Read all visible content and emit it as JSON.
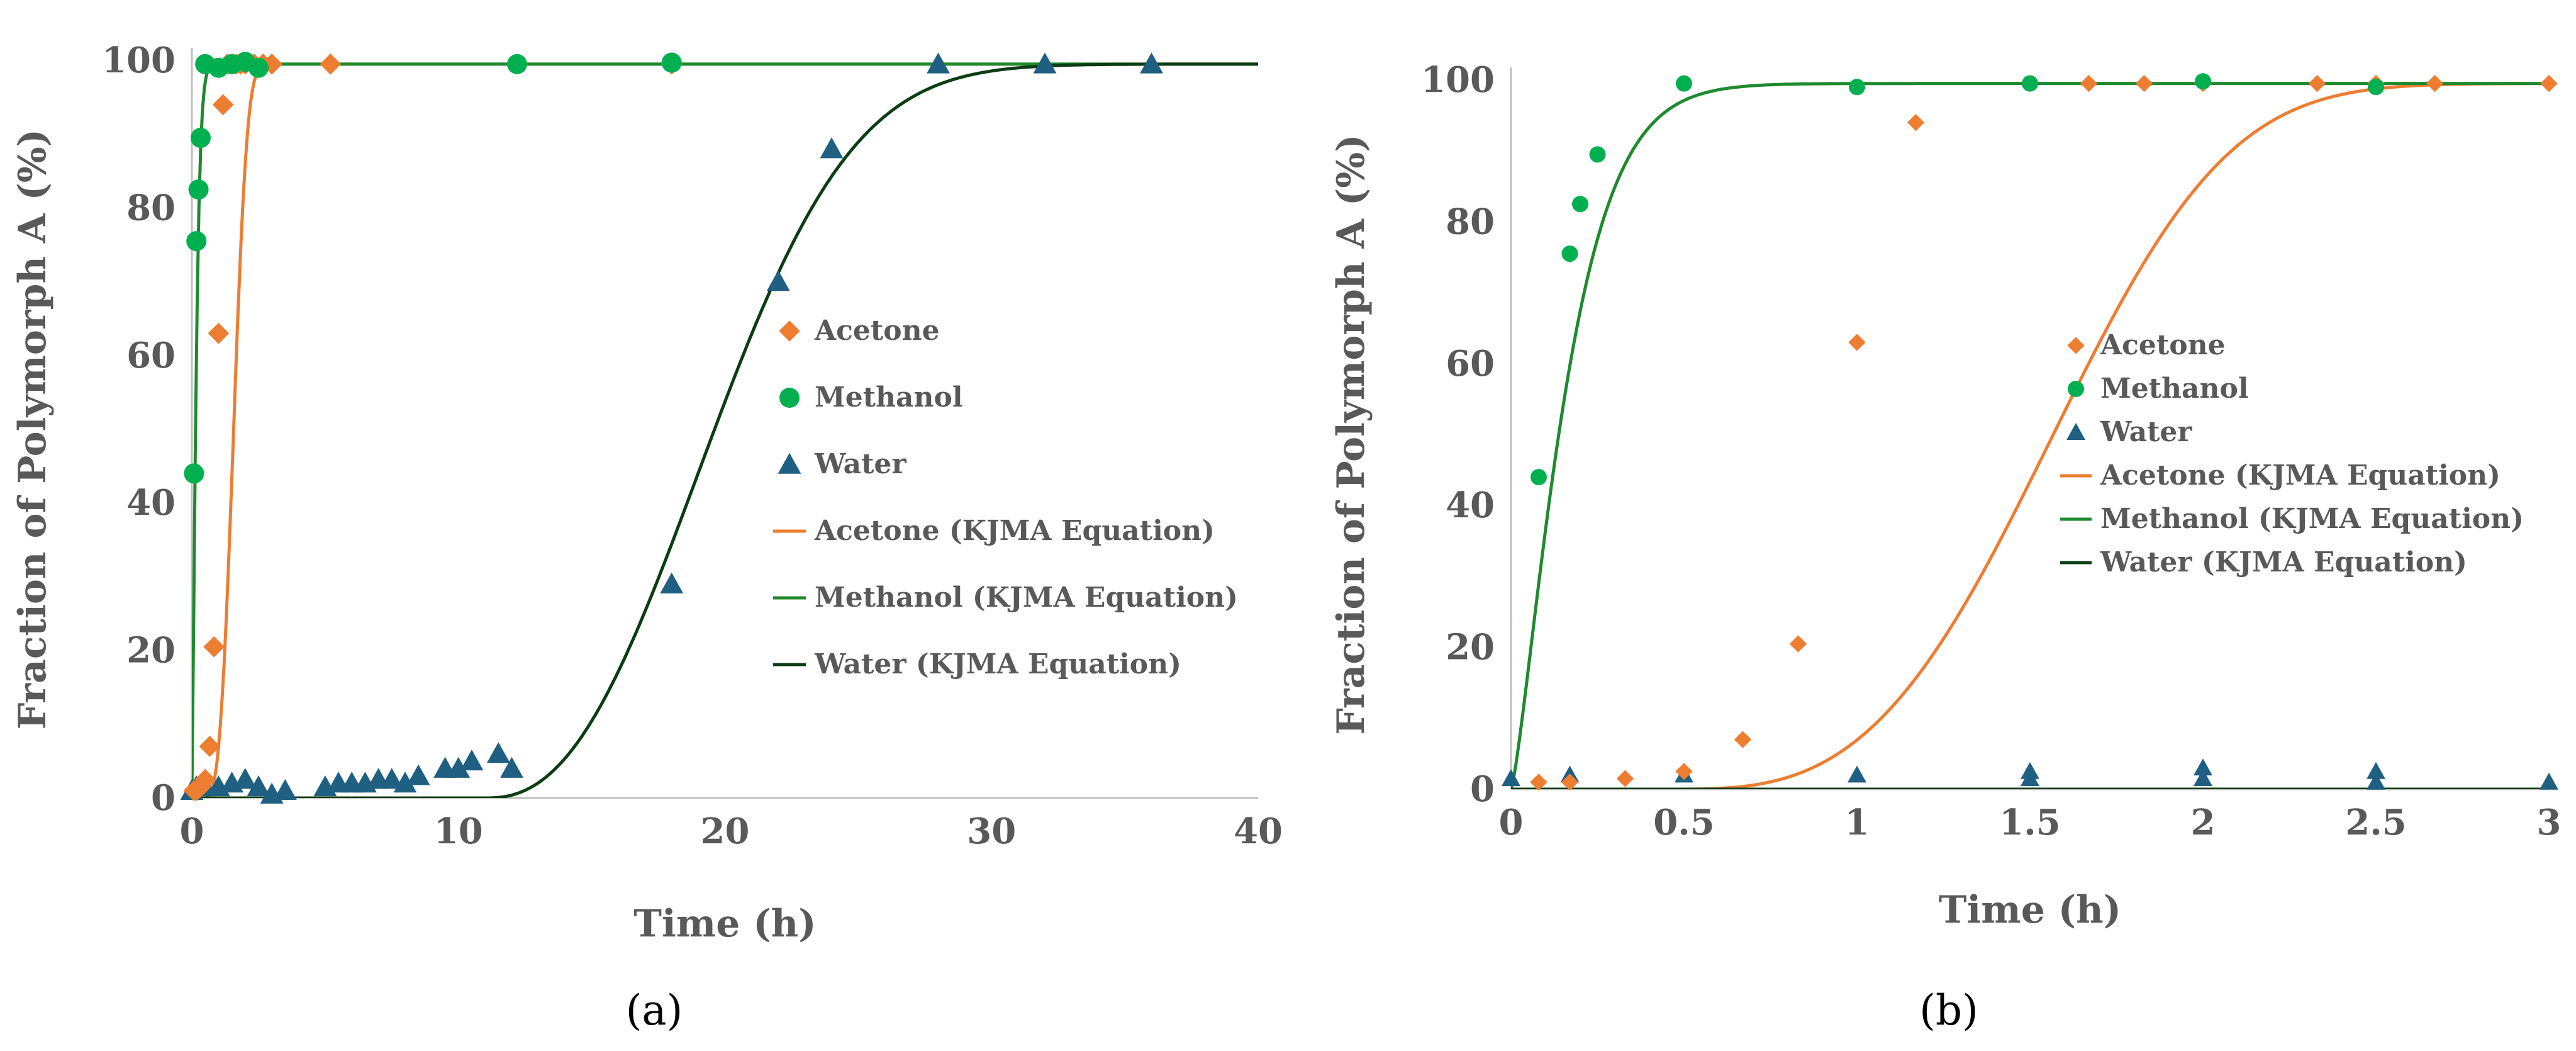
{
  "figure": {
    "panels": [
      "(a)",
      "(b)"
    ]
  },
  "colors": {
    "acetone": "#ED7D31",
    "methanol": "#00B050",
    "methanol_fit": "#1E8A2E",
    "water": "#1F5F82",
    "water_fit": "#0B3D12",
    "axis": "#BFBFBF",
    "text": "#595959"
  },
  "chart_data": [
    {
      "type": "scatter",
      "panel_label": "(a)",
      "xlabel": "Time (h)",
      "ylabel": "Fraction of Polymorph A (%)",
      "xlim": [
        0,
        40
      ],
      "ylim": [
        0,
        100
      ],
      "xticks": [
        0,
        10,
        20,
        30,
        40
      ],
      "yticks": [
        0,
        20,
        40,
        60,
        80,
        100
      ],
      "grid": false,
      "legend_position": "center-right",
      "series": [
        {
          "name": "Acetone",
          "kind": "points",
          "marker": "diamond",
          "color": "acetone",
          "x": [
            0.08,
            0.17,
            0.33,
            0.5,
            0.67,
            0.83,
            1.0,
            1.17,
            1.33,
            1.5,
            1.67,
            1.83,
            2.0,
            2.33,
            2.67,
            3.0,
            5.2,
            12.2,
            18.0
          ],
          "y": [
            1,
            1,
            1.5,
            2.5,
            7,
            20.5,
            63,
            94,
            99.5,
            99.5,
            99.5,
            99.5,
            99.5,
            99.5,
            99.5,
            99.5,
            99.5,
            99.5,
            99.5
          ]
        },
        {
          "name": "Methanol",
          "kind": "points",
          "marker": "circle",
          "color": "methanol",
          "x": [
            0.08,
            0.17,
            0.25,
            0.33,
            0.5,
            1.0,
            1.5,
            2.0,
            2.5,
            12.2,
            18.0
          ],
          "y": [
            44,
            75.5,
            82.5,
            89.5,
            99.5,
            99,
            99.5,
            99.8,
            99,
            99.5,
            99.7
          ]
        },
        {
          "name": "Water",
          "kind": "points",
          "marker": "triangle",
          "color": "water",
          "x": [
            0,
            0.17,
            0.5,
            1.0,
            1.5,
            2.0,
            2.5,
            3.0,
            3.5,
            5.0,
            5.5,
            6.0,
            6.5,
            7.0,
            7.5,
            8.0,
            8.5,
            9.5,
            10.0,
            10.5,
            11.5,
            12.0,
            18.0,
            22.0,
            24.0,
            28.0,
            32.0,
            36.0
          ],
          "y": [
            1,
            1.5,
            1.5,
            1.5,
            2,
            2.5,
            1.5,
            0.5,
            1,
            1.5,
            2,
            2,
            2,
            2.5,
            2.5,
            2,
            3,
            4,
            4,
            5,
            6,
            4,
            29,
            70,
            88,
            99.5,
            99.5,
            99.5
          ]
        },
        {
          "name": "Acetone (KJMA Equation)",
          "kind": "line",
          "color": "acetone",
          "model": {
            "t0": 0.45,
            "k": 0.8,
            "n": 3.2,
            "ymax": 99.5
          }
        },
        {
          "name": "Methanol (KJMA Equation)",
          "kind": "line",
          "color": "methanol_fit",
          "model": {
            "t0": 0,
            "k": 5.5,
            "n": 1.3,
            "ymax": 99.5
          }
        },
        {
          "name": "Water (KJMA Equation)",
          "kind": "line",
          "color": "water_fit",
          "model": {
            "t0": 11.0,
            "k": 0.1,
            "n": 2.4,
            "ymax": 99.5
          }
        }
      ]
    },
    {
      "type": "scatter",
      "panel_label": "(b)",
      "xlabel": "Time (h)",
      "ylabel": "Fraction of Polymorph A (%)",
      "xlim": [
        0,
        3
      ],
      "ylim": [
        0,
        100
      ],
      "xticks": [
        0,
        0.5,
        1,
        1.5,
        2,
        2.5,
        3
      ],
      "yticks": [
        0,
        20,
        40,
        60,
        80,
        100
      ],
      "grid": false,
      "legend_position": "center-right",
      "series": [
        {
          "name": "Acetone",
          "kind": "points",
          "marker": "diamond",
          "color": "acetone",
          "x": [
            0.08,
            0.17,
            0.33,
            0.5,
            0.67,
            0.83,
            1.0,
            1.17,
            1.67,
            1.83,
            2.0,
            2.33,
            2.5,
            2.67,
            3.0
          ],
          "y": [
            1,
            1,
            1.5,
            2.5,
            7,
            20.5,
            63,
            94,
            99.5,
            99.5,
            99.5,
            99.5,
            99.5,
            99.5,
            99.5
          ]
        },
        {
          "name": "Methanol",
          "kind": "points",
          "marker": "circle",
          "color": "methanol",
          "x": [
            0.08,
            0.17,
            0.2,
            0.25,
            0.5,
            1.0,
            1.5,
            2.0,
            2.5
          ],
          "y": [
            44,
            75.5,
            82.5,
            89.5,
            99.5,
            99,
            99.5,
            99.8,
            99
          ]
        },
        {
          "name": "Water",
          "kind": "points",
          "marker": "triangle",
          "color": "water",
          "x": [
            0,
            0.17,
            0.5,
            1.0,
            1.5,
            1.5,
            2.0,
            2.0,
            2.5,
            2.5,
            3.0
          ],
          "y": [
            1.5,
            2,
            2,
            2,
            2.5,
            1.5,
            3,
            1.5,
            2.5,
            1,
            1
          ]
        },
        {
          "name": "Acetone (KJMA Equation)",
          "kind": "line",
          "color": "acetone",
          "model": {
            "t0": 0.45,
            "k": 0.8,
            "n": 3.2,
            "ymax": 99.5
          }
        },
        {
          "name": "Methanol (KJMA Equation)",
          "kind": "line",
          "color": "methanol_fit",
          "model": {
            "t0": 0,
            "k": 5.5,
            "n": 1.3,
            "ymax": 99.5
          }
        },
        {
          "name": "Water (KJMA Equation)",
          "kind": "line",
          "color": "water_fit",
          "model": {
            "t0": 11.0,
            "k": 0.1,
            "n": 2.4,
            "ymax": 99.5
          }
        }
      ]
    }
  ]
}
